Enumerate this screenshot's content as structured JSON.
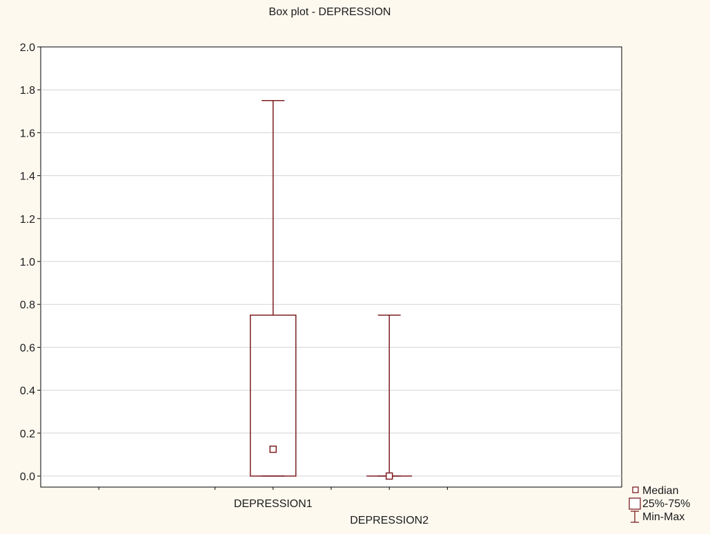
{
  "chart_data": {
    "type": "box",
    "title": "Box plot - DEPRESSION",
    "xlabel": "",
    "ylabel": "",
    "ylim": [
      0.0,
      2.0
    ],
    "yticks": [
      0.0,
      0.2,
      0.4,
      0.6,
      0.8,
      1.0,
      1.2,
      1.4,
      1.6,
      1.8,
      2.0
    ],
    "ytick_labels": [
      "0.0",
      "0.2",
      "0.4",
      "0.6",
      "0.8",
      "1.0",
      "1.2",
      "1.4",
      "1.6",
      "1.8",
      "2.0"
    ],
    "grid": true,
    "color": "#7b1c20",
    "categories": [
      "DEPRESSION1",
      "DEPRESSION2"
    ],
    "boxes": [
      {
        "category": "DEPRESSION1",
        "min": 0.0,
        "q1": 0.0,
        "median": 0.125,
        "q3": 0.75,
        "max": 1.75
      },
      {
        "category": "DEPRESSION2",
        "min": 0.0,
        "q1": 0.0,
        "median": 0.0,
        "q3": 0.0,
        "max": 0.75
      }
    ],
    "legend": {
      "placement": "bottom-right",
      "entries": [
        {
          "symbol": "median",
          "label": "Median"
        },
        {
          "symbol": "box",
          "label": "25%-75%"
        },
        {
          "symbol": "whisker",
          "label": "Min-Max"
        }
      ]
    }
  }
}
